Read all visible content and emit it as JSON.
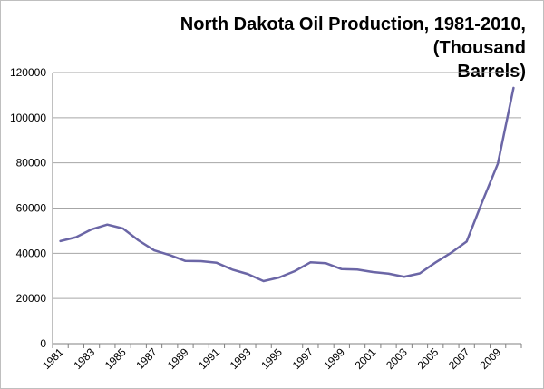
{
  "chart_data": {
    "type": "line",
    "title": "North Dakota Oil Production, 1981-2010, (Thousand Barrels)",
    "title_lines": [
      "North Dakota Oil Production, 1981-2010, (Thousand",
      "Barrels)"
    ],
    "xlabel": "",
    "ylabel": "",
    "ylim": [
      0,
      120000
    ],
    "yticks": [
      "0",
      "20000",
      "40000",
      "60000",
      "80000",
      "100000",
      "120000"
    ],
    "ytick_values": [
      0,
      20000,
      40000,
      60000,
      80000,
      100000,
      120000
    ],
    "xtick_labels": [
      "1981",
      "1983",
      "1985",
      "1987",
      "1989",
      "1991",
      "1993",
      "1995",
      "1997",
      "1999",
      "2001",
      "2003",
      "2005",
      "2007",
      "2009"
    ],
    "grid": true,
    "legend": "none",
    "line_color": "#6b66a6",
    "x": [
      1981,
      1982,
      1983,
      1984,
      1985,
      1986,
      1987,
      1988,
      1989,
      1990,
      1991,
      1992,
      1993,
      1994,
      1995,
      1996,
      1997,
      1998,
      1999,
      2000,
      2001,
      2002,
      2003,
      2004,
      2005,
      2006,
      2007,
      2008,
      2009,
      2010
    ],
    "series": [
      {
        "values": [
          45400,
          47100,
          50600,
          52700,
          51000,
          45700,
          41300,
          39200,
          36600,
          36500,
          35800,
          32800,
          30800,
          27700,
          29300,
          32100,
          36000,
          35600,
          33000,
          32800,
          31700,
          31000,
          29600,
          31100,
          35900,
          40200,
          45200,
          62800,
          79700,
          113200
        ]
      }
    ]
  }
}
